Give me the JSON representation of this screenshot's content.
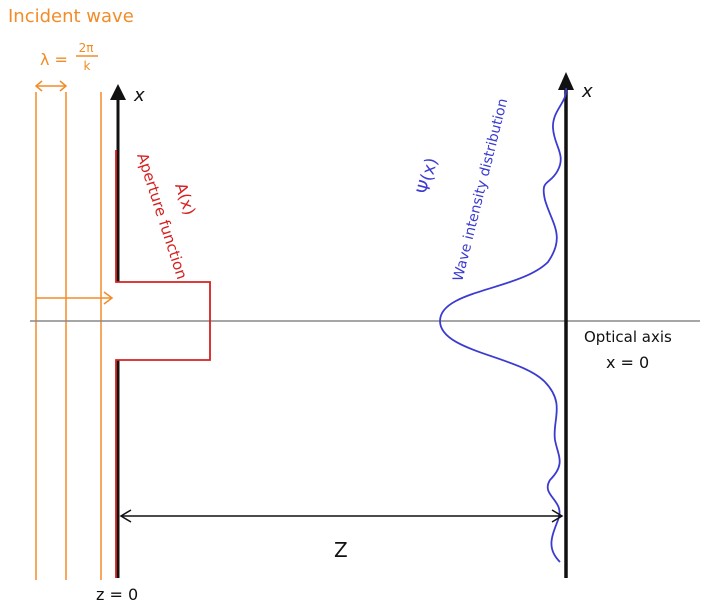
{
  "labels": {
    "incident_wave": "Incident wave",
    "wavelength_lambda": "λ =",
    "wavelength_num": "2π",
    "wavelength_den": "k",
    "axis_x_left": "x",
    "axis_x_right": "x",
    "aperture_function_symbol": "A(x)",
    "aperture_function_text": "Aperture function",
    "intensity_symbol": "Ψ(x)",
    "intensity_text": "Wave intensity distribution",
    "optical_axis_line1": "Optical axis",
    "optical_axis_line2": "x = 0",
    "distance_label": "Z",
    "origin_label": "z = 0"
  },
  "colors": {
    "incident_wave": "#f28c28",
    "aperture": "#d62020",
    "intensity": "#3b3bd1",
    "axis": "#111111",
    "optical_axis": "#888888"
  }
}
